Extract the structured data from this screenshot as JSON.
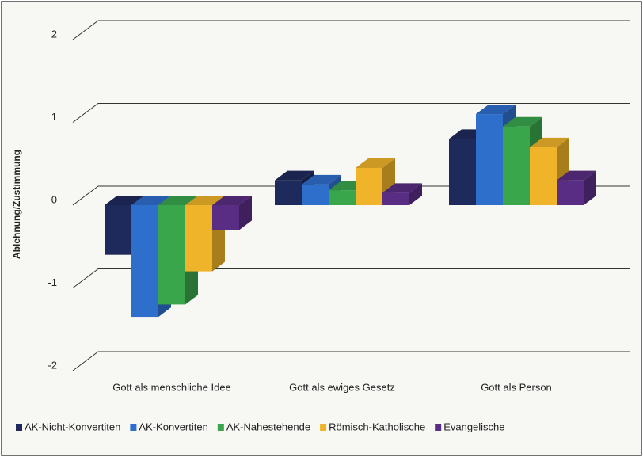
{
  "chart_data": {
    "type": "bar3d",
    "y_label": "Ablehnung/Zustimmung",
    "categories": [
      "Gott als menschliche Idee",
      "Gott als ewiges Gesetz",
      "Gott als Person"
    ],
    "series": [
      {
        "name": "AK-Nicht-Konvertiten",
        "color": "#1f2a5c",
        "values": [
          -0.6,
          0.3,
          0.8
        ]
      },
      {
        "name": "AK-Konvertiten",
        "color": "#2f6fcc",
        "values": [
          -1.35,
          0.25,
          1.1
        ]
      },
      {
        "name": "AK-Nahestehende",
        "color": "#3aa64c",
        "values": [
          -1.2,
          0.18,
          0.95
        ]
      },
      {
        "name": "Römisch-Katholische",
        "color": "#f0b42a",
        "values": [
          -0.8,
          0.45,
          0.7
        ]
      },
      {
        "name": "Evangelische",
        "color": "#5a2d84",
        "values": [
          -0.3,
          0.15,
          0.3
        ]
      }
    ],
    "ylim": [
      -2,
      2
    ],
    "yticks": [
      2,
      1,
      0,
      -1,
      -2
    ],
    "grid": true,
    "legend": "bottom"
  }
}
